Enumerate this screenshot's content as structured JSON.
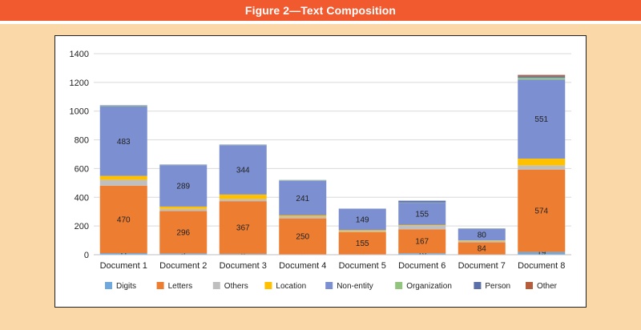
{
  "header": {
    "title": "Figure 2—Text Composition"
  },
  "chart_data": {
    "type": "bar",
    "stacked": true,
    "categories": [
      "Document 1",
      "Document 2",
      "Document 3",
      "Document 4",
      "Document 5",
      "Document 6",
      "Document 7",
      "Document 8"
    ],
    "ylim": [
      0,
      1400
    ],
    "yticks": [
      0,
      200,
      400,
      600,
      800,
      1000,
      1200,
      1400
    ],
    "grid": true,
    "legend_position": "bottom",
    "series": [
      {
        "name": "Digits",
        "color": "#6fa8dc",
        "values": [
          11,
          9,
          6,
          3,
          3,
          10,
          2,
          19
        ],
        "labeled": true
      },
      {
        "name": "Letters",
        "color": "#ed7d31",
        "values": [
          470,
          296,
          367,
          250,
          155,
          167,
          84,
          574
        ],
        "labeled": true
      },
      {
        "name": "Others",
        "color": "#bfbfbf",
        "values": [
          40,
          14,
          14,
          12,
          6,
          25,
          10,
          28
        ],
        "labeled": false
      },
      {
        "name": "Location",
        "color": "#ffc000",
        "values": [
          28,
          16,
          32,
          9,
          7,
          5,
          4,
          48
        ],
        "labeled": false
      },
      {
        "name": "Non-entity",
        "color": "#7c8fd1",
        "values": [
          483,
          289,
          344,
          241,
          149,
          155,
          80,
          551
        ],
        "labeled": true
      },
      {
        "name": "Organization",
        "color": "#92c47d",
        "values": [
          4,
          2,
          2,
          3,
          0,
          2,
          1,
          13
        ],
        "labeled": false
      },
      {
        "name": "Person",
        "color": "#5b6fa8",
        "values": [
          4,
          2,
          2,
          2,
          1,
          12,
          2,
          10
        ],
        "labeled": false
      },
      {
        "name": "Other",
        "color": "#b65d3c",
        "values": [
          0,
          0,
          0,
          0,
          0,
          0,
          0,
          9
        ],
        "labeled": false
      }
    ]
  }
}
